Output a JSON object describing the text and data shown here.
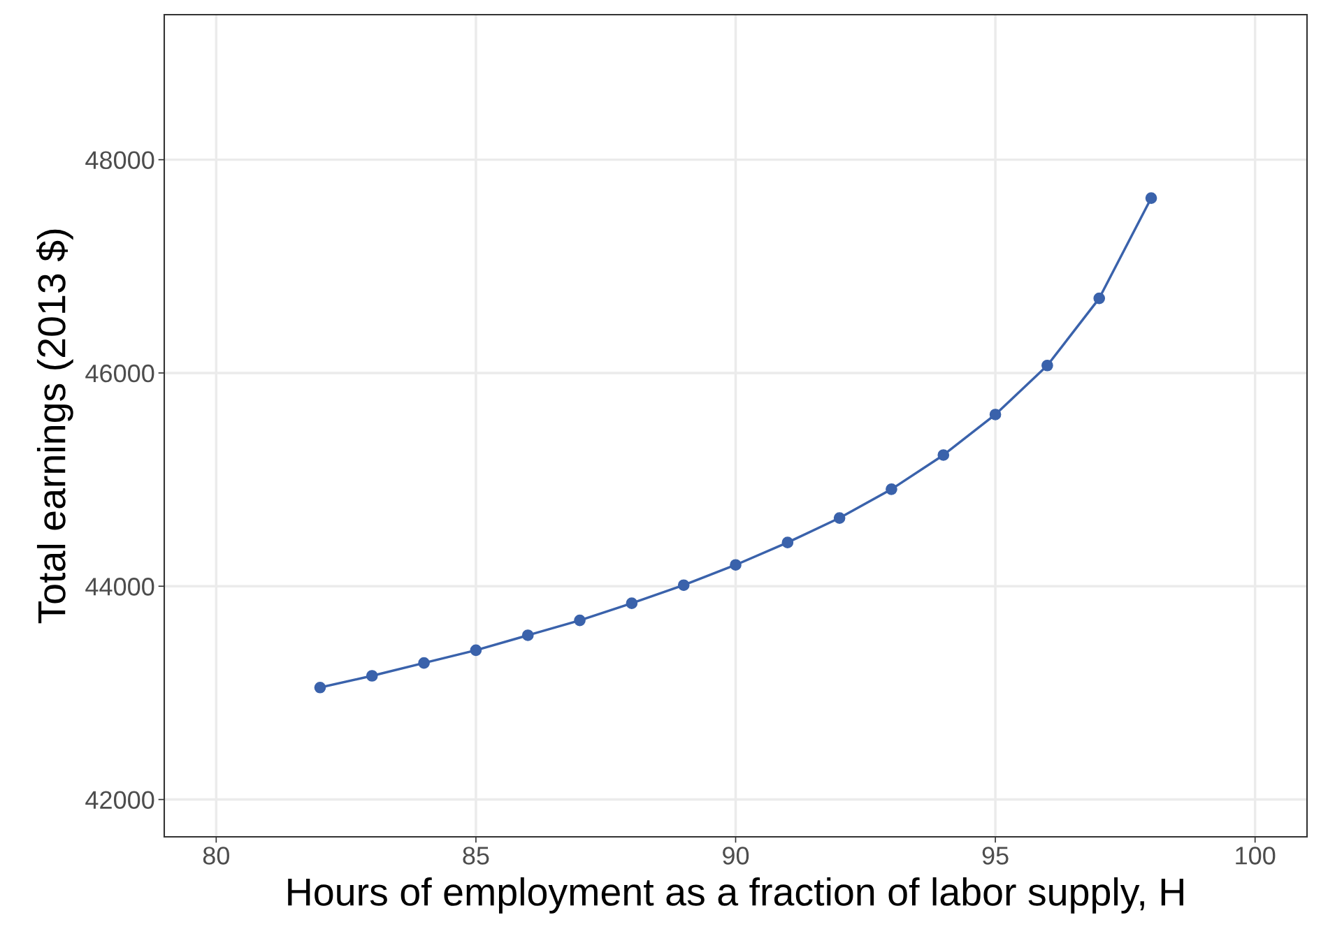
{
  "chart_data": {
    "type": "line",
    "xlabel": "Hours of employment as a fraction of labor supply, H",
    "ylabel": "Total earnings (2013 $)",
    "x": [
      82,
      83,
      84,
      85,
      86,
      87,
      88,
      89,
      90,
      91,
      92,
      93,
      94,
      95,
      96,
      97,
      98
    ],
    "series": [
      {
        "color": "#3a62ab",
        "values": [
          43050,
          43160,
          43280,
          43400,
          43540,
          43680,
          43840,
          44010,
          44200,
          44410,
          44640,
          44910,
          45230,
          45610,
          46070,
          46700,
          47640
        ]
      }
    ],
    "xlim": [
      79,
      101
    ],
    "xticks": [
      80,
      85,
      90,
      95,
      100
    ],
    "ylim": [
      41650,
      49360
    ],
    "yticks": [
      42000,
      44000,
      46000,
      48000
    ],
    "grid": true,
    "marker": "circle",
    "line_style": "solid"
  }
}
